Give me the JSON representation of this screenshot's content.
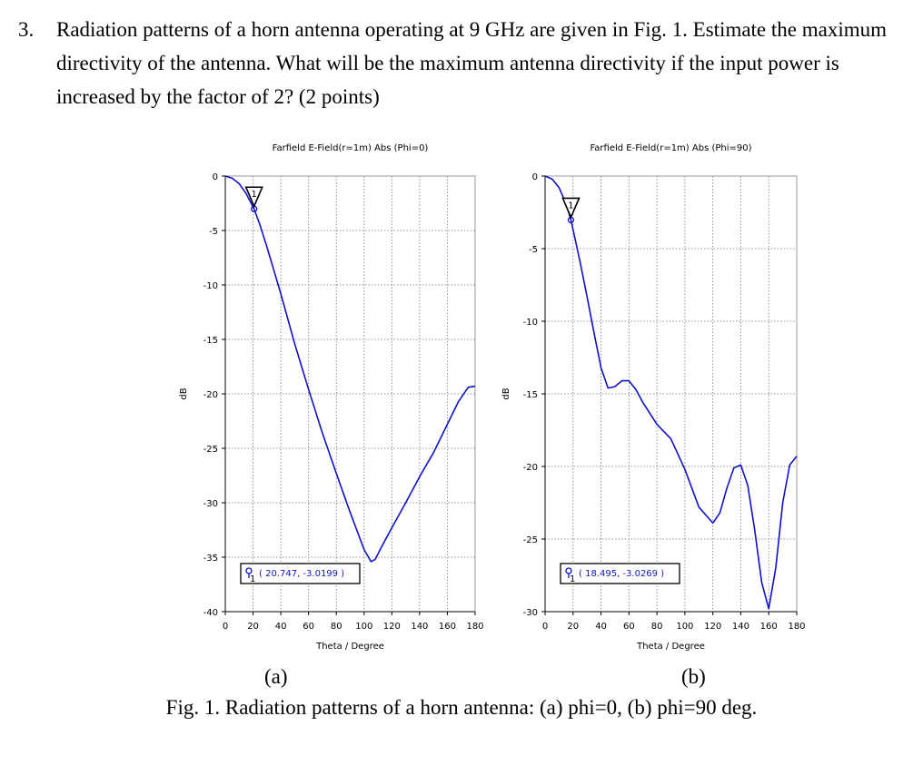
{
  "question": {
    "number": "3.",
    "text": "Radiation patterns of a horn antenna operating at 9 GHz are given in Fig. 1. Estimate the maximum directivity of the antenna. What will be the maximum antenna directivity if the input power is increased by the factor of 2? (2 points)"
  },
  "chart_data": [
    {
      "type": "line",
      "title": "Farfield E-Field(r=1m) Abs (Phi=0)",
      "xlabel": "Theta / Degree",
      "ylabel": "dB",
      "xlim": [
        0,
        180
      ],
      "ylim": [
        -40,
        0
      ],
      "xticks": [
        0,
        20,
        40,
        60,
        80,
        100,
        120,
        140,
        160,
        180
      ],
      "yticks": [
        0,
        -5,
        -10,
        -15,
        -20,
        -25,
        -30,
        -35,
        -40
      ],
      "grid": true,
      "series": [
        {
          "color": "#1010c8",
          "x": [
            0,
            5,
            10,
            15,
            20.747,
            25,
            30,
            40,
            50,
            60,
            70,
            80,
            90,
            100,
            105,
            108,
            112,
            120,
            130,
            140,
            150,
            160,
            168,
            175,
            180
          ],
          "y": [
            0,
            -0.2,
            -0.7,
            -1.6,
            -3.02,
            -4.5,
            -6.5,
            -10.8,
            -15.4,
            -19.6,
            -23.6,
            -27.3,
            -30.9,
            -34.3,
            -35.4,
            -35.2,
            -34.2,
            -32.3,
            -30.0,
            -27.6,
            -25.4,
            -22.8,
            -20.7,
            -19.4,
            -19.3
          ]
        }
      ],
      "marker": {
        "label": "1",
        "x": 20.747,
        "y": -3.0199,
        "readout": "( 20.747, -3.0199 )"
      }
    },
    {
      "type": "line",
      "title": "Farfield E-Field(r=1m) Abs (Phi=90)",
      "xlabel": "Theta / Degree",
      "ylabel": "dB",
      "xlim": [
        0,
        180
      ],
      "ylim": [
        -30,
        0
      ],
      "xticks": [
        0,
        20,
        40,
        60,
        80,
        100,
        120,
        140,
        160,
        180
      ],
      "yticks": [
        0,
        -5,
        -10,
        -15,
        -20,
        -25,
        -30
      ],
      "grid": true,
      "series": [
        {
          "color": "#1010c8",
          "x": [
            0,
            5,
            10,
            15,
            18.495,
            25,
            30,
            35,
            40,
            45,
            50,
            55,
            60,
            65,
            70,
            80,
            90,
            100,
            110,
            120,
            125,
            130,
            135,
            140,
            145,
            150,
            155,
            160,
            165,
            170,
            175,
            180
          ],
          "y": [
            0,
            -0.2,
            -0.8,
            -1.9,
            -3.03,
            -5.9,
            -8.3,
            -10.8,
            -13.2,
            -14.6,
            -14.5,
            -14.1,
            -14.1,
            -14.7,
            -15.6,
            -17.1,
            -18.1,
            -20.2,
            -22.8,
            -23.9,
            -23.2,
            -21.5,
            -20.1,
            -19.9,
            -21.3,
            -24.4,
            -28.0,
            -29.8,
            -27.0,
            -22.5,
            -19.9,
            -19.3
          ]
        }
      ],
      "marker": {
        "label": "1",
        "x": 18.495,
        "y": -3.0269,
        "readout": "( 18.495, -3.0269 )"
      }
    }
  ],
  "subfigure_labels": [
    "(a)",
    "(b)"
  ],
  "caption": "Fig. 1. Radiation patterns of a horn antenna: (a) phi=0, (b) phi=90 deg."
}
